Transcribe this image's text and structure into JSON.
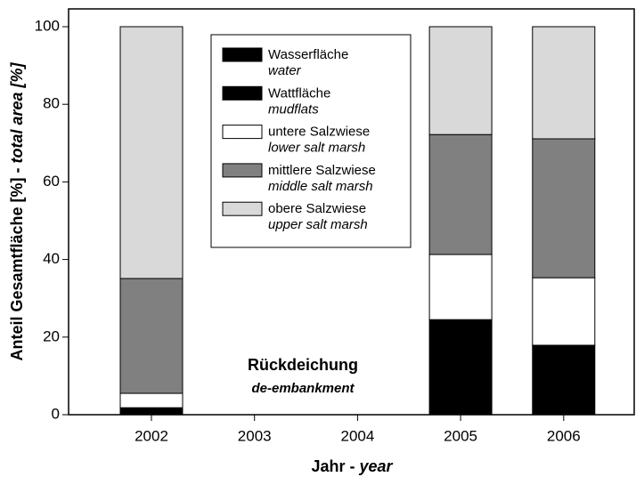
{
  "chart_data": {
    "type": "bar",
    "stacked": true,
    "categories": [
      "2002",
      "2003",
      "2004",
      "2005",
      "2006"
    ],
    "series": [
      {
        "name": "Wasserfläche",
        "name_en": "water",
        "color": "#000000",
        "values": [
          0,
          null,
          null,
          0,
          0
        ]
      },
      {
        "name": "Wattfläche",
        "name_en": "mudflats",
        "color": "#000000",
        "values": [
          1.8,
          null,
          null,
          24.5,
          17.9
        ]
      },
      {
        "name": "untere Salzwiese",
        "name_en": "lower salt marsh",
        "color": "#ffffff",
        "values": [
          3.7,
          null,
          null,
          16.8,
          17.4
        ]
      },
      {
        "name": "mittlere Salzwiese",
        "name_en": "middle salt marsh",
        "color": "#808080",
        "values": [
          29.6,
          null,
          null,
          30.9,
          35.8
        ]
      },
      {
        "name": "obere Salzwiese",
        "name_en": "upper salt marsh",
        "color": "#d9d9d9",
        "values": [
          64.9,
          null,
          null,
          27.8,
          28.9
        ]
      }
    ],
    "ylim": [
      0,
      100
    ],
    "yticks": [
      0,
      20,
      40,
      60,
      80,
      100
    ],
    "xlabel": "Jahr - ",
    "xlabel_en": "year",
    "ylabel": "Anteil Gesamtfläche [%] - ",
    "ylabel_en": "total area [%]",
    "annotation": "Rückdeichung",
    "annotation_en": "de-embankment"
  }
}
